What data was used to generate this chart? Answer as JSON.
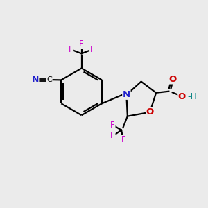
{
  "background_color": "#ebebeb",
  "bond_color": "#000000",
  "N_color": "#2020cc",
  "O_color": "#cc0000",
  "F_color": "#cc00cc",
  "C_color": "#000000",
  "teal_color": "#008080",
  "figsize": [
    3.0,
    3.0
  ],
  "dpi": 100,
  "xlim": [
    0,
    10
  ],
  "ylim": [
    0,
    10
  ]
}
